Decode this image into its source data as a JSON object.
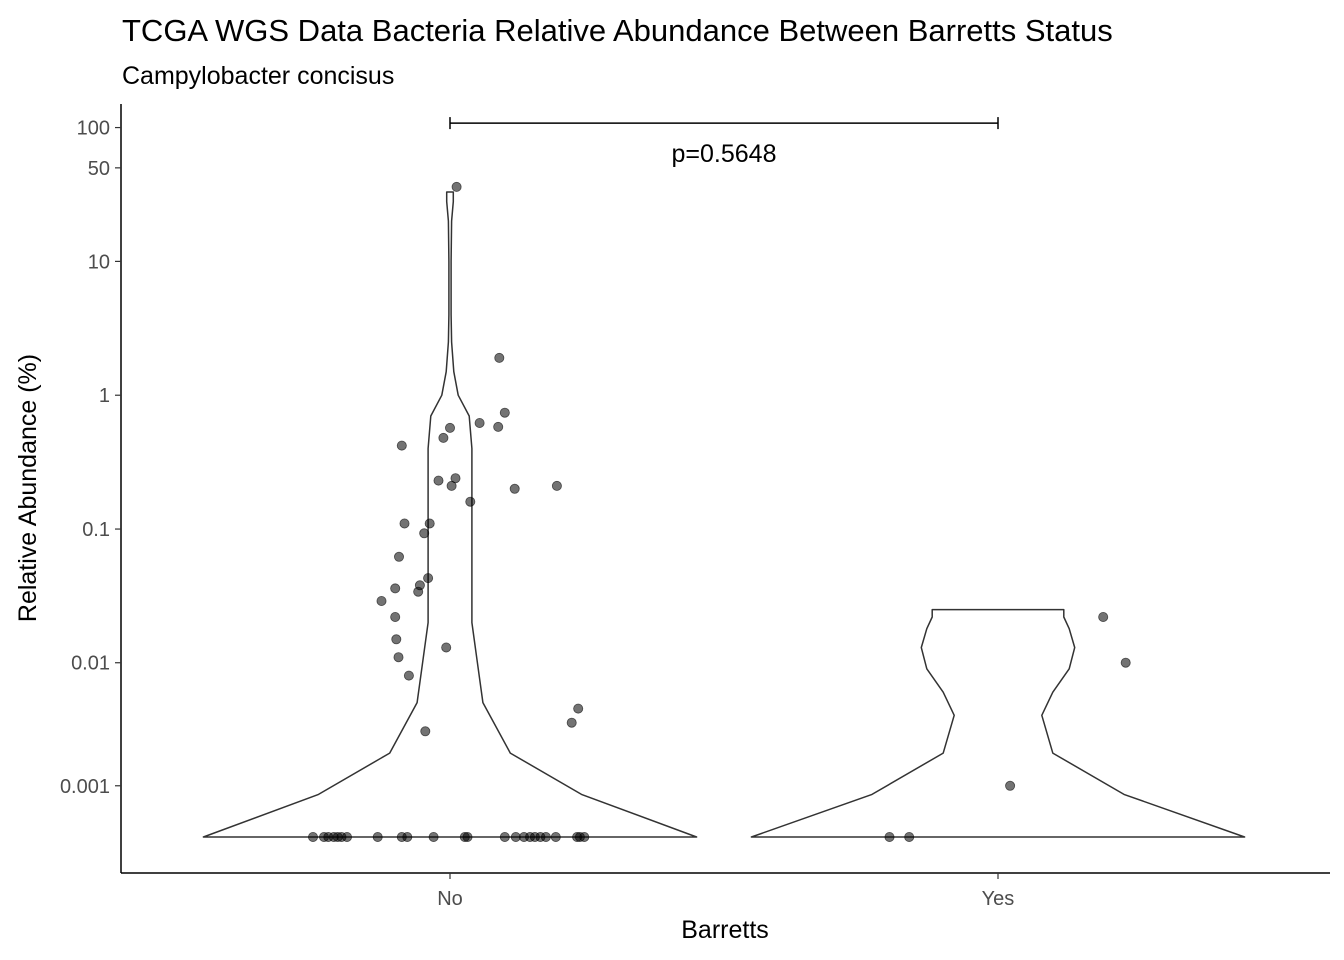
{
  "chart_data": {
    "type": "violin",
    "title": "TCGA WGS Data Bacteria Relative Abundance Between Barretts Status",
    "subtitle": "Campylobacter concisus",
    "xlabel": "Barretts",
    "ylabel": "Relative Abundance (%)",
    "y_scale": "pseudo-log",
    "y_ticks": [
      0.001,
      0.01,
      0.1,
      1,
      10,
      50,
      100
    ],
    "y_tick_labels": [
      "0.001",
      "0.01",
      "0.1",
      "1",
      "10",
      "50",
      "100"
    ],
    "ylim": [
      0,
      150
    ],
    "categories": [
      "No",
      "Yes"
    ],
    "grid": false,
    "legend": "none",
    "point_color": "#000000",
    "point_opacity": 0.55,
    "violin_stroke": "#333333",
    "annotation": {
      "text": "p=0.5648",
      "from": "No",
      "to": "Yes",
      "y": 108
    },
    "groups": [
      {
        "name": "No",
        "violin": {
          "y": [
            0,
            0.0008,
            0.002,
            0.005,
            0.01,
            0.02,
            0.05,
            0.1,
            0.2,
            0.4,
            0.7,
            1.0,
            1.5,
            2.5,
            4,
            10,
            20,
            28,
            30,
            33
          ],
          "half_width": [
            0.45,
            0.24,
            0.11,
            0.06,
            0.05,
            0.04,
            0.04,
            0.04,
            0.04,
            0.04,
            0.035,
            0.015,
            0.007,
            0.003,
            0.002,
            0.002,
            0.003,
            0.006,
            0.006,
            0.006
          ]
        },
        "points": [
          {
            "dx": -0.125,
            "y": 0.029
          },
          {
            "dx": -0.1,
            "y": 0.022
          },
          {
            "dx": -0.1,
            "y": 0.036
          },
          {
            "dx": -0.098,
            "y": 0.015
          },
          {
            "dx": -0.094,
            "y": 0.011
          },
          {
            "dx": -0.093,
            "y": 0.062
          },
          {
            "dx": -0.088,
            "y": 0.42
          },
          {
            "dx": -0.083,
            "y": 0.11
          },
          {
            "dx": -0.075,
            "y": 0.008
          },
          {
            "dx": -0.058,
            "y": 0.034
          },
          {
            "dx": -0.055,
            "y": 0.038
          },
          {
            "dx": -0.047,
            "y": 0.093
          },
          {
            "dx": -0.045,
            "y": 0.003
          },
          {
            "dx": -0.04,
            "y": 0.043
          },
          {
            "dx": -0.037,
            "y": 0.11
          },
          {
            "dx": -0.021,
            "y": 0.23
          },
          {
            "dx": -0.012,
            "y": 0.48
          },
          {
            "dx": -0.007,
            "y": 0.013
          },
          {
            "dx": 0.0,
            "y": 0.57
          },
          {
            "dx": 0.003,
            "y": 0.21
          },
          {
            "dx": 0.01,
            "y": 0.24
          },
          {
            "dx": 0.012,
            "y": 36
          },
          {
            "dx": 0.037,
            "y": 0.16
          },
          {
            "dx": 0.054,
            "y": 0.62
          },
          {
            "dx": 0.09,
            "y": 1.9
          },
          {
            "dx": 0.088,
            "y": 0.58
          },
          {
            "dx": 0.1,
            "y": 0.74
          },
          {
            "dx": 0.118,
            "y": 0.2
          },
          {
            "dx": 0.195,
            "y": 0.21
          },
          {
            "dx": 0.222,
            "y": 0.0035
          },
          {
            "dx": 0.234,
            "y": 0.0045
          },
          {
            "dx": -0.25,
            "y": 0
          },
          {
            "dx": -0.23,
            "y": 0
          },
          {
            "dx": -0.222,
            "y": 0
          },
          {
            "dx": -0.212,
            "y": 0
          },
          {
            "dx": -0.205,
            "y": 0
          },
          {
            "dx": -0.198,
            "y": 0
          },
          {
            "dx": -0.188,
            "y": 0
          },
          {
            "dx": -0.132,
            "y": 0
          },
          {
            "dx": -0.088,
            "y": 0
          },
          {
            "dx": -0.078,
            "y": 0
          },
          {
            "dx": -0.03,
            "y": 0
          },
          {
            "dx": 0.027,
            "y": 0
          },
          {
            "dx": 0.032,
            "y": 0
          },
          {
            "dx": 0.1,
            "y": 0
          },
          {
            "dx": 0.12,
            "y": 0
          },
          {
            "dx": 0.135,
            "y": 0
          },
          {
            "dx": 0.146,
            "y": 0
          },
          {
            "dx": 0.155,
            "y": 0
          },
          {
            "dx": 0.165,
            "y": 0
          },
          {
            "dx": 0.175,
            "y": 0
          },
          {
            "dx": 0.193,
            "y": 0
          },
          {
            "dx": 0.232,
            "y": 0
          },
          {
            "dx": 0.237,
            "y": 0
          },
          {
            "dx": 0.245,
            "y": 0
          }
        ]
      },
      {
        "name": "Yes",
        "violin": {
          "y": [
            0,
            0.0008,
            0.002,
            0.004,
            0.006,
            0.009,
            0.013,
            0.018,
            0.022,
            0.025
          ],
          "half_width": [
            0.45,
            0.23,
            0.1,
            0.08,
            0.1,
            0.13,
            0.14,
            0.13,
            0.12,
            0.12
          ]
        },
        "points": [
          {
            "dx": -0.198,
            "y": 0
          },
          {
            "dx": -0.162,
            "y": 0
          },
          {
            "dx": 0.022,
            "y": 0.001
          },
          {
            "dx": 0.192,
            "y": 0.022
          },
          {
            "dx": 0.233,
            "y": 0.01
          }
        ]
      }
    ]
  }
}
